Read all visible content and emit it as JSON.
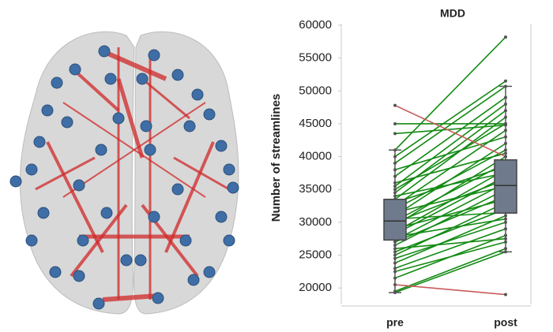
{
  "chart_data": {
    "type": "box_paired",
    "title": "MDD",
    "ylabel": "Number of streamlines",
    "categories": [
      "pre",
      "post"
    ],
    "boxes": [
      {
        "whislo": 19300,
        "q1": 27300,
        "med": 30200,
        "q3": 33500,
        "whishi": 41000
      },
      {
        "whislo": 25500,
        "q1": 31400,
        "med": 35600,
        "q3": 39500,
        "whishi": 50700
      }
    ],
    "pairs": {
      "pre": [
        19300,
        19500,
        20500,
        21500,
        22500,
        23000,
        23800,
        24500,
        25000,
        25500,
        26000,
        26500,
        27000,
        27300,
        27800,
        28200,
        28500,
        29000,
        29500,
        30000,
        30200,
        30500,
        31000,
        31500,
        32000,
        32500,
        33000,
        33500,
        34000,
        34500,
        35000,
        35500,
        36000,
        37000,
        38000,
        39000,
        40000,
        41000,
        43500,
        45000,
        47800
      ],
      "post": [
        25500,
        26000,
        19000,
        28000,
        27000,
        29000,
        31000,
        30000,
        33000,
        32000,
        27500,
        35000,
        34000,
        36000,
        30500,
        37000,
        38000,
        33500,
        40000,
        36500,
        39000,
        31500,
        42000,
        35500,
        41000,
        44000,
        38500,
        46000,
        37500,
        47000,
        45000,
        48000,
        40500,
        49000,
        43000,
        50700,
        51500,
        58200,
        44800,
        45000,
        40000
      ]
    },
    "ylim": [
      17500,
      60000
    ],
    "yticks": [
      20000,
      25000,
      30000,
      35000,
      40000,
      45000,
      50000,
      55000,
      60000
    ],
    "box_color": "#6f7b8c",
    "increase_color": "#138a13",
    "decrease_color": "#c85a5a"
  }
}
